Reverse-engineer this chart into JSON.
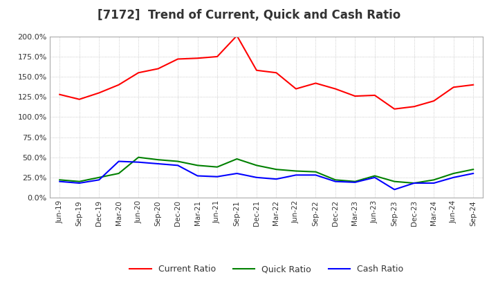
{
  "title": "[7172]  Trend of Current, Quick and Cash Ratio",
  "x_labels": [
    "Jun-19",
    "Sep-19",
    "Dec-19",
    "Mar-20",
    "Jun-20",
    "Sep-20",
    "Dec-20",
    "Mar-21",
    "Jun-21",
    "Sep-21",
    "Dec-21",
    "Mar-22",
    "Jun-22",
    "Sep-22",
    "Dec-22",
    "Mar-23",
    "Jun-23",
    "Sep-23",
    "Dec-23",
    "Mar-24",
    "Jun-24",
    "Sep-24"
  ],
  "current_ratio": [
    1.28,
    1.22,
    1.3,
    1.4,
    1.55,
    1.6,
    1.72,
    1.73,
    1.75,
    2.01,
    1.58,
    1.55,
    1.35,
    1.42,
    1.35,
    1.26,
    1.27,
    1.1,
    1.13,
    1.2,
    1.37,
    1.4
  ],
  "quick_ratio": [
    0.22,
    0.2,
    0.25,
    0.3,
    0.5,
    0.47,
    0.45,
    0.4,
    0.38,
    0.48,
    0.4,
    0.35,
    0.33,
    0.32,
    0.22,
    0.2,
    0.27,
    0.2,
    0.18,
    0.22,
    0.3,
    0.35
  ],
  "cash_ratio": [
    0.2,
    0.18,
    0.22,
    0.45,
    0.44,
    0.42,
    0.4,
    0.27,
    0.26,
    0.3,
    0.25,
    0.23,
    0.28,
    0.28,
    0.2,
    0.19,
    0.25,
    0.1,
    0.18,
    0.18,
    0.25,
    0.3
  ],
  "current_color": "#FF0000",
  "quick_color": "#008000",
  "cash_color": "#0000FF",
  "ylim": [
    0.0,
    2.0
  ],
  "yticks": [
    0.0,
    0.25,
    0.5,
    0.75,
    1.0,
    1.25,
    1.5,
    1.75,
    2.0
  ],
  "ytick_labels": [
    "0.0%",
    "25.0%",
    "50.0%",
    "75.0%",
    "100.0%",
    "125.0%",
    "150.0%",
    "175.0%",
    "200.0%"
  ],
  "bg_color": "#ffffff",
  "grid_color": "#aaaaaa",
  "title_fontsize": 12,
  "legend_labels": [
    "Current Ratio",
    "Quick Ratio",
    "Cash Ratio"
  ]
}
